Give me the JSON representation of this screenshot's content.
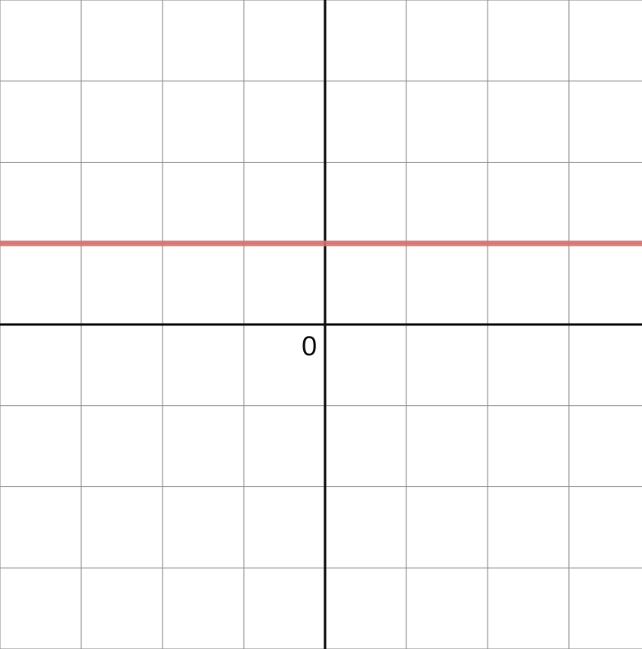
{
  "chart_data": {
    "type": "line",
    "title": "",
    "xlabel": "",
    "ylabel": "",
    "xlim": [
      -4,
      3.9
    ],
    "ylim": [
      -4,
      4
    ],
    "grid": true,
    "grid_step": 1,
    "origin_label": "0",
    "series": [
      {
        "x": [
          -4,
          3.9
        ],
        "values": [
          1,
          1
        ],
        "color": "#d9706f"
      }
    ]
  },
  "colors": {
    "grid": "#8a8a8a",
    "axis": "#111111",
    "background": "#ffffff"
  }
}
